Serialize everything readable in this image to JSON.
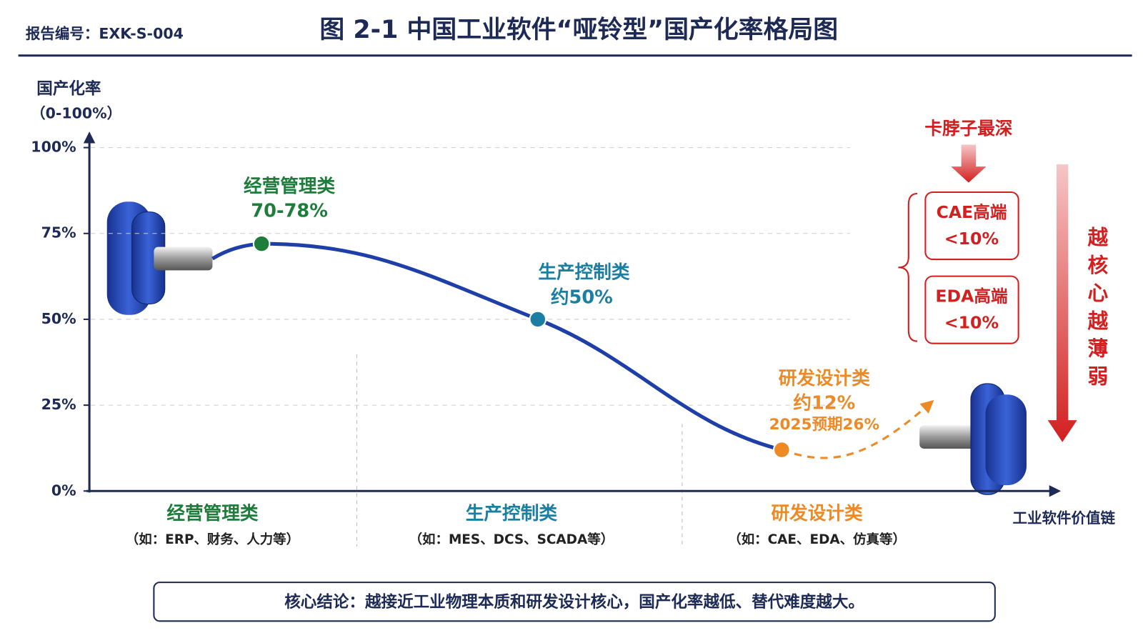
{
  "chart_data": {
    "type": "line",
    "report_no": "报告编号：EXK-S-004",
    "title": "图 2-1  中国工业软件“哑铃型”国产化率格局图",
    "y_label": "国产化率",
    "y_label_unit": "（0-100%）",
    "x_label": "工业软件价值链",
    "categories": [
      "经营管理类",
      "生产控制类",
      "研发设计类"
    ],
    "category_notes": [
      "（如：ERP、财务、人力等）",
      "（如：MES、DCS、SCADA等）",
      "（如：CAE、EDA、仿真等）"
    ],
    "values": [
      72,
      50,
      12
    ],
    "value_labels": [
      "70-78%",
      "约50%",
      "约12%"
    ],
    "colors": [
      "#1e7d3a",
      "#1b7fa3",
      "#ee8a26"
    ],
    "line_color": "#1f3fa8",
    "forecast": {
      "value": 26,
      "label": "2025预期26%"
    },
    "ylim": [
      0,
      100
    ],
    "yticks": [
      {
        "value": 0,
        "label": "0%"
      },
      {
        "value": 25,
        "label": "25%"
      },
      {
        "value": 50,
        "label": "50%"
      },
      {
        "value": 75,
        "label": "75%"
      },
      {
        "value": 100,
        "label": "100%"
      }
    ],
    "grid": true,
    "side": {
      "title": "卡脖子最深",
      "boxes": [
        {
          "name": "CAE高端",
          "value_label": "<10%"
        },
        {
          "name": "EDA高端",
          "value_label": "<10%"
        }
      ],
      "arrow_text": "越核心越薄弱"
    },
    "conclusion": "核心结论：越接近工业物理本质和研发设计核心，国产化率越低、替代难度越大。"
  }
}
